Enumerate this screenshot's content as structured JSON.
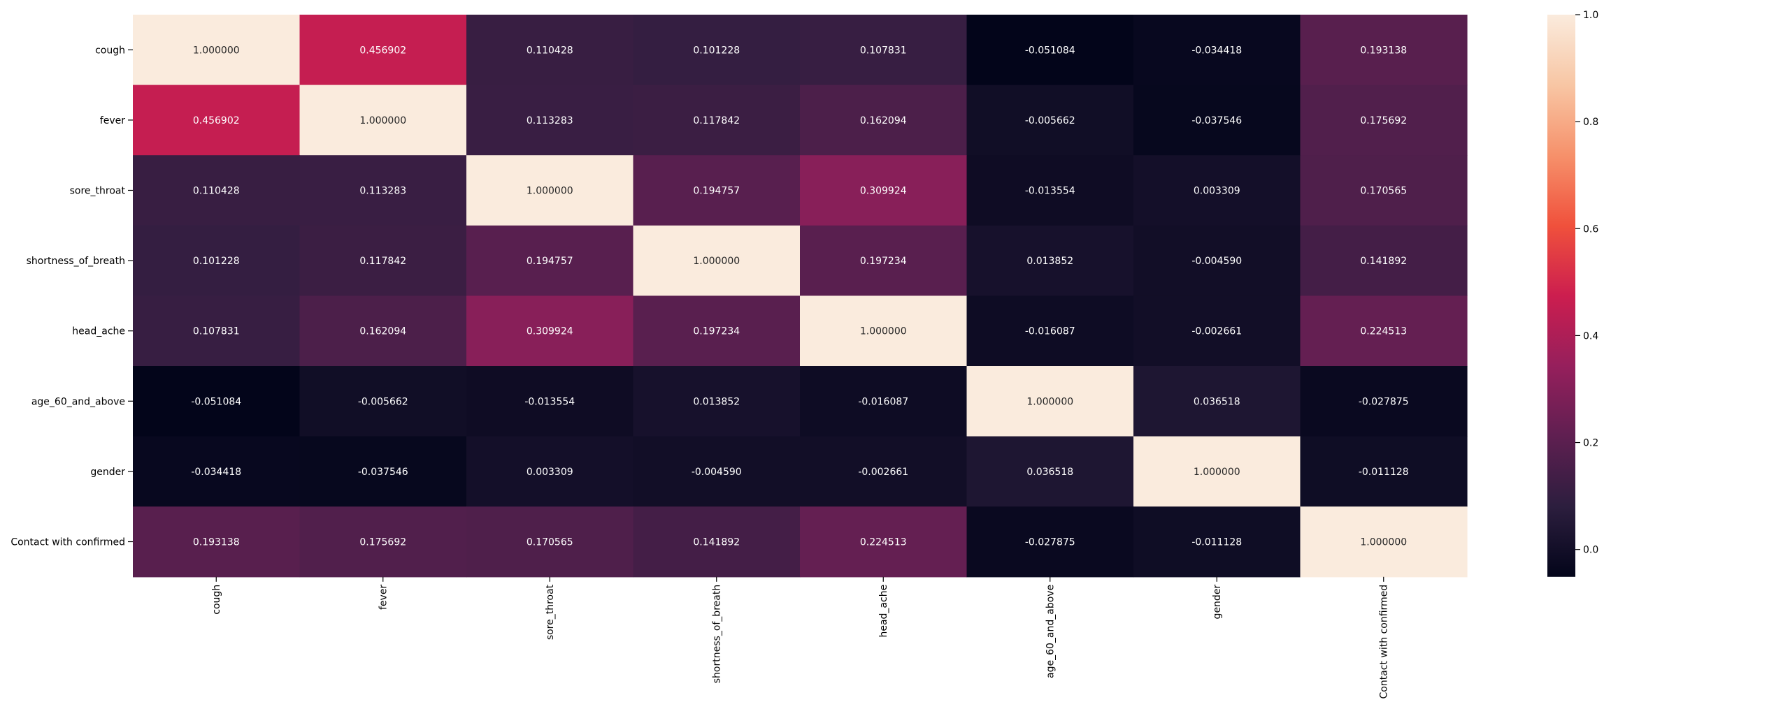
{
  "chart_data": {
    "type": "heatmap",
    "title": "",
    "xlabel": "",
    "ylabel": "",
    "rows": [
      "cough",
      "fever",
      "sore_throat",
      "shortness_of_breath",
      "head_ache",
      "age_60_and_above",
      "gender",
      "Contact with confirmed"
    ],
    "columns": [
      "cough",
      "fever",
      "sore_throat",
      "shortness_of_breath",
      "head_ache",
      "age_60_and_above",
      "gender",
      "Contact with confirmed"
    ],
    "values": [
      [
        1.0,
        0.456902,
        0.110428,
        0.101228,
        0.107831,
        -0.051084,
        -0.034418,
        0.193138
      ],
      [
        0.456902,
        1.0,
        0.113283,
        0.117842,
        0.162094,
        -0.005662,
        -0.037546,
        0.175692
      ],
      [
        0.110428,
        0.113283,
        1.0,
        0.194757,
        0.309924,
        -0.013554,
        0.003309,
        0.170565
      ],
      [
        0.101228,
        0.117842,
        0.194757,
        1.0,
        0.197234,
        0.013852,
        -0.00459,
        0.141892
      ],
      [
        0.107831,
        0.162094,
        0.309924,
        0.197234,
        1.0,
        -0.016087,
        -0.002661,
        0.224513
      ],
      [
        -0.051084,
        -0.005662,
        -0.013554,
        0.013852,
        -0.016087,
        1.0,
        0.036518,
        -0.027875
      ],
      [
        -0.034418,
        -0.037546,
        0.003309,
        -0.00459,
        -0.002661,
        0.036518,
        1.0,
        -0.011128
      ],
      [
        0.193138,
        0.175692,
        0.170565,
        0.141892,
        0.224513,
        -0.027875,
        -0.011128,
        1.0
      ]
    ],
    "value_format": "6 decimals",
    "colorbar": {
      "min": -0.051084,
      "max": 1.0,
      "ticks": [
        "0.0",
        "0.2",
        "0.4",
        "0.6",
        "0.8",
        "1.0"
      ],
      "colormap": "rocket",
      "colormap_stops": [
        "#03051a",
        "#2c1e3e",
        "#5f1f51",
        "#961f5c",
        "#cc1e4f",
        "#f0513c",
        "#f6916b",
        "#f8c6a4",
        "#faebdd"
      ]
    },
    "grid": false,
    "legend": "colorbar-right"
  }
}
